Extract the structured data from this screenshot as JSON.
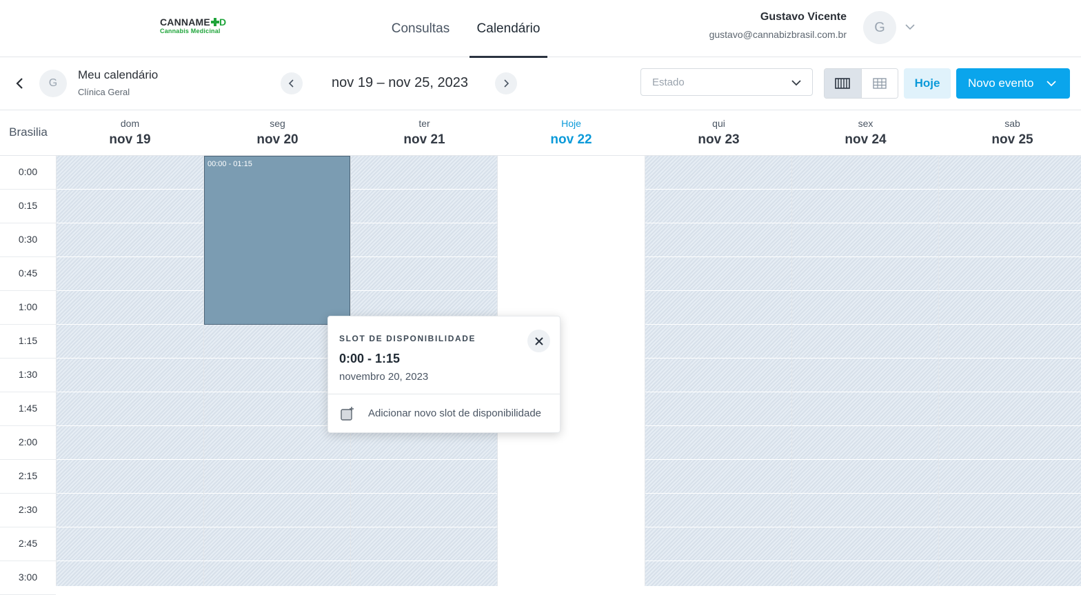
{
  "brand": {
    "logo_main_a": "CANNAME",
    "logo_main_b": "D",
    "logo_sub": "Cannabis Medicinal",
    "color_green": "#1fa43a"
  },
  "nav": {
    "tabs": [
      {
        "label": "Consultas"
      },
      {
        "label": "Calendário",
        "active": true
      }
    ]
  },
  "user": {
    "name": "Gustavo Vicente",
    "email": "gustavo@cannabizbrasil.com.br",
    "avatar_initial": "G"
  },
  "toolbar": {
    "calendar_title": "Meu calendário",
    "calendar_subtitle": "Clínica Geral",
    "avatar_initial": "G",
    "date_range": "nov 19 – nov 25, 2023",
    "estado_placeholder": "Estado",
    "hoje_label": "Hoje",
    "novo_evento_label": "Novo evento",
    "accent_color": "#0aa5ec"
  },
  "calendar": {
    "timezone": "Brasilia",
    "days": [
      {
        "name": "dom",
        "date": "nov 19"
      },
      {
        "name": "seg",
        "date": "nov 20"
      },
      {
        "name": "ter",
        "date": "nov 21"
      },
      {
        "name": "Hoje",
        "date": "nov 22",
        "today": true
      },
      {
        "name": "qui",
        "date": "nov 23"
      },
      {
        "name": "sex",
        "date": "nov 24"
      },
      {
        "name": "sab",
        "date": "nov 25"
      }
    ],
    "times": [
      "0:00",
      "0:15",
      "0:30",
      "0:45",
      "1:00",
      "1:15",
      "1:30",
      "1:45",
      "2:00",
      "2:15",
      "2:30",
      "2:45",
      "3:00"
    ],
    "event": {
      "label": "00:00 - 01:15",
      "color": "#7b9cb2"
    }
  },
  "popover": {
    "title": "SLOT DE DISPONIBILIDADE",
    "time": "0:00 - 1:15",
    "date": "novembro 20, 2023",
    "action_label": "Adicionar novo slot de disponibilidade"
  }
}
